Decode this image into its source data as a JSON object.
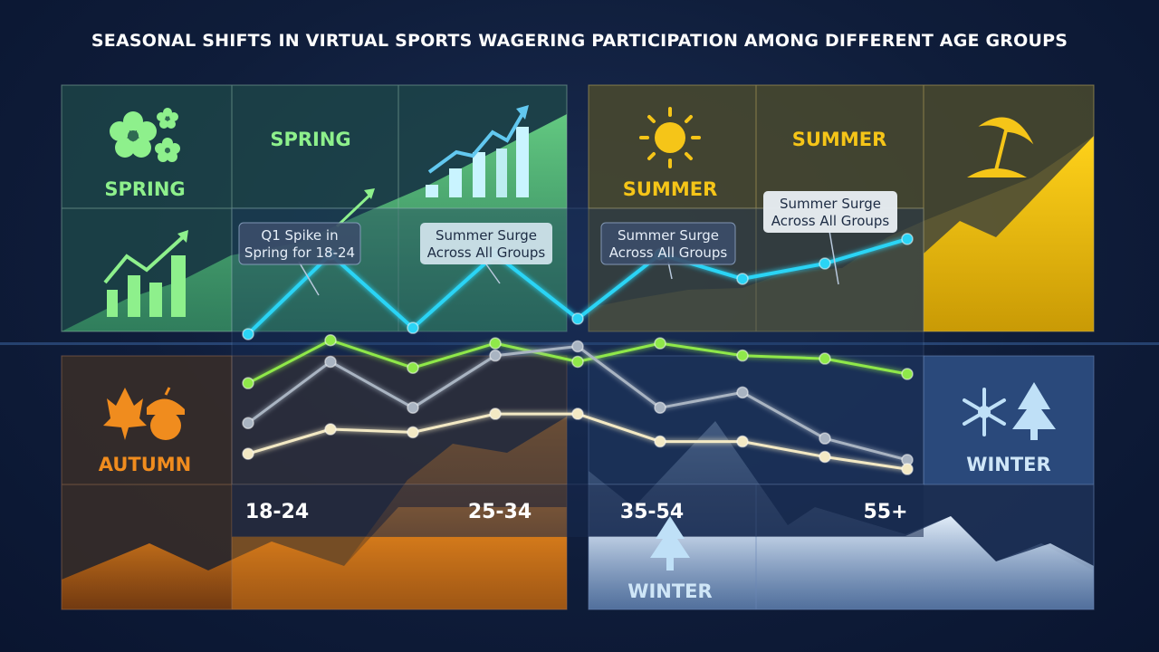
{
  "title": "SEASONAL SHIFTS IN VIRTUAL SPORTS WAGERING PARTICIPATION AMONG DIFFERENT AGE GROUPS",
  "seasons": {
    "spring_icon_label": "SPRING",
    "spring_header": "SPRING",
    "summer_icon_label": "SUMMER",
    "summer_header": "SUMMER",
    "autumn_label": "AUTUMN",
    "winter_label": "WINTER",
    "winter_bottom_label": "WINTER"
  },
  "colors": {
    "spring": "#8ef08c",
    "summer": "#f5c518",
    "autumn": "#f08c1e",
    "winter": "#cfe6f7",
    "series_cyan": "#2ad4f5",
    "series_green": "#8fe84a",
    "series_gray": "#a9b4c2",
    "series_cream": "#f3e9c4"
  },
  "icons": {
    "spring": "flower-icon",
    "summer": "sun-icon",
    "summer_right": "beach-umbrella-icon",
    "autumn": "leaf-acorn-icon",
    "winter": "snowflake-tree-icon"
  },
  "callouts": [
    {
      "text_line1": "Q1 Spike in",
      "text_line2": "Spring for 18-24"
    },
    {
      "text_line1": "Summer Surge",
      "text_line2": "Across All Groups"
    },
    {
      "text_line1": "Summer Surge",
      "text_line2": "Across All Groups"
    },
    {
      "text_line1": "Summer Surge",
      "text_line2": "Across All Groups"
    }
  ],
  "chart_data": {
    "type": "line",
    "title": "SEASONAL SHIFTS IN VIRTUAL SPORTS WAGERING PARTICIPATION AMONG DIFFERENT AGE GROUPS",
    "categories": [
      "18-24",
      "25-34",
      "35-54",
      "55+"
    ],
    "x": [
      1,
      2,
      3,
      4,
      5,
      6,
      7,
      8,
      9
    ],
    "series": [
      {
        "color": "#2ad4f5",
        "values": [
          29,
          55,
          31,
          55,
          34,
          55,
          47,
          52,
          60
        ]
      },
      {
        "color": "#8fe84a",
        "values": [
          13,
          27,
          18,
          26,
          20,
          26,
          22,
          21,
          16
        ]
      },
      {
        "color": "#a9b4c2",
        "values": [
          0,
          20,
          5,
          22,
          25,
          5,
          10,
          -5,
          -12
        ]
      },
      {
        "color": "#f3e9c4",
        "values": [
          -10,
          -2,
          -3,
          3,
          3,
          -6,
          -6,
          -11,
          -15
        ]
      }
    ],
    "ylim": [
      -20,
      70
    ],
    "grid": false
  }
}
